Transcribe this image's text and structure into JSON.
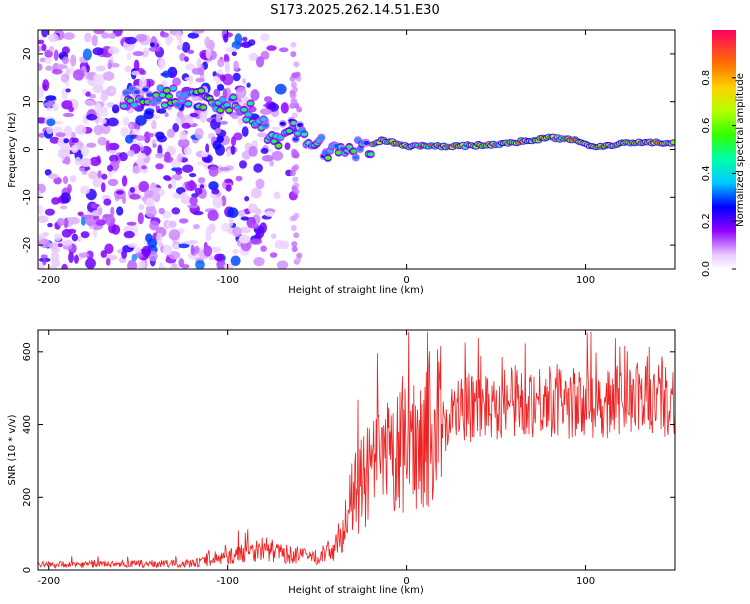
{
  "title": "S173.2025.262.14.51.E30",
  "chart_data": [
    {
      "type": "heatmap",
      "title": "S173.2025.262.14.51.E30",
      "xlabel": "Height of straight line (km)",
      "ylabel": "Frequency (Hz)",
      "xlim": [
        -206,
        150
      ],
      "ylim": [
        -25,
        25
      ],
      "xticks": [
        -200,
        -100,
        0,
        100
      ],
      "yticks": [
        -20,
        -10,
        0,
        10,
        20
      ],
      "colorbar": {
        "label": "Normalized spectral amplitude",
        "range": [
          0,
          1
        ],
        "ticks": [
          0.0,
          0.2,
          0.4,
          0.6,
          0.8
        ]
      },
      "signal_ridge": [
        {
          "x": -155,
          "y": 11
        },
        {
          "x": -140,
          "y": 11
        },
        {
          "x": -120,
          "y": 11
        },
        {
          "x": -105,
          "y": 10
        },
        {
          "x": -95,
          "y": 9
        },
        {
          "x": -88,
          "y": 8
        },
        {
          "x": -80,
          "y": 5
        },
        {
          "x": -74,
          "y": 1
        },
        {
          "x": -66,
          "y": 5
        },
        {
          "x": -55,
          "y": 2
        },
        {
          "x": -45,
          "y": 0
        },
        {
          "x": -35,
          "y": 0
        },
        {
          "x": -25,
          "y": 0
        },
        {
          "x": -14,
          "y": 2
        },
        {
          "x": 0,
          "y": 0.7
        },
        {
          "x": 25,
          "y": 0.7
        },
        {
          "x": 50,
          "y": 1
        },
        {
          "x": 80,
          "y": 2.5
        },
        {
          "x": 95,
          "y": 2
        },
        {
          "x": 105,
          "y": 0.5
        },
        {
          "x": 125,
          "y": 1.5
        },
        {
          "x": 150,
          "y": 1.5
        }
      ]
    },
    {
      "type": "line",
      "xlabel": "Height of straight line (km)",
      "ylabel": "SNR (10 * v/v)",
      "xlim": [
        -206,
        150
      ],
      "ylim": [
        0,
        660
      ],
      "xticks": [
        -200,
        -100,
        0,
        100
      ],
      "yticks": [
        0,
        200,
        400,
        600
      ],
      "series": [
        {
          "name": "SNR",
          "color": "#ee2222",
          "envelope_x": [
            -206,
            -120,
            -100,
            -90,
            -80,
            -70,
            -60,
            -50,
            -40,
            -35,
            -30,
            -20,
            -10,
            0,
            10,
            20,
            30,
            50,
            80,
            100,
            120,
            150
          ],
          "envelope_y": [
            15,
            18,
            35,
            50,
            60,
            45,
            40,
            35,
            60,
            120,
            200,
            270,
            300,
            330,
            380,
            410,
            440,
            460,
            470,
            450,
            470,
            470
          ]
        }
      ]
    }
  ]
}
